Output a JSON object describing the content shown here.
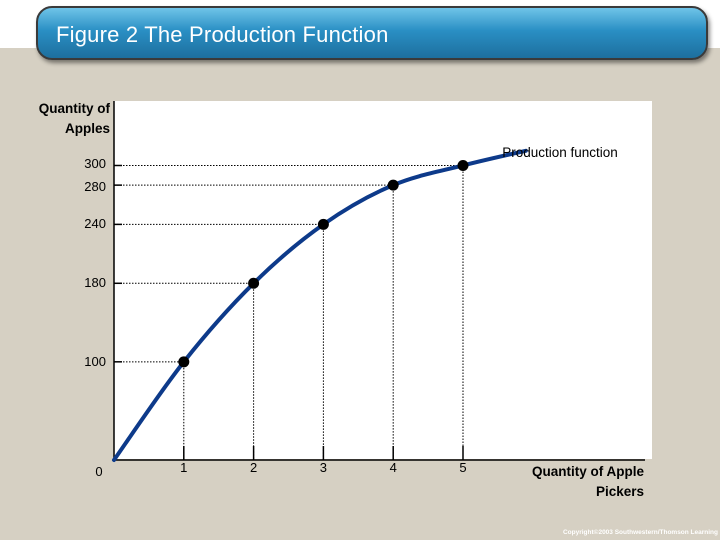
{
  "title": "Figure 2 The Production Function",
  "copyright": "Copyright©2003  Southwestern/Thomson Learning",
  "chart_data": {
    "type": "line",
    "title": "",
    "xlabel": "Quantity of Apple Pickers",
    "ylabel": "Quantity of Apples",
    "x_ticks": [
      "1",
      "2",
      "3",
      "4",
      "5"
    ],
    "y_ticks": [
      "100",
      "180",
      "240",
      "280",
      "300"
    ],
    "origin_label": "0",
    "series": [
      {
        "name": "Production function",
        "x": [
          0,
          1,
          2,
          3,
          4,
          5
        ],
        "y": [
          0,
          100,
          180,
          240,
          280,
          300
        ]
      }
    ],
    "curve_extends_to": {
      "x": 5.9,
      "y": 315
    },
    "markers_at_x": [
      1,
      2,
      3,
      4,
      5
    ],
    "dotted_guides": true,
    "grid": false,
    "colors": {
      "curve": "#0d3a8a",
      "markers": "#000000",
      "guides": "#000000",
      "background": "#ffffff"
    }
  }
}
